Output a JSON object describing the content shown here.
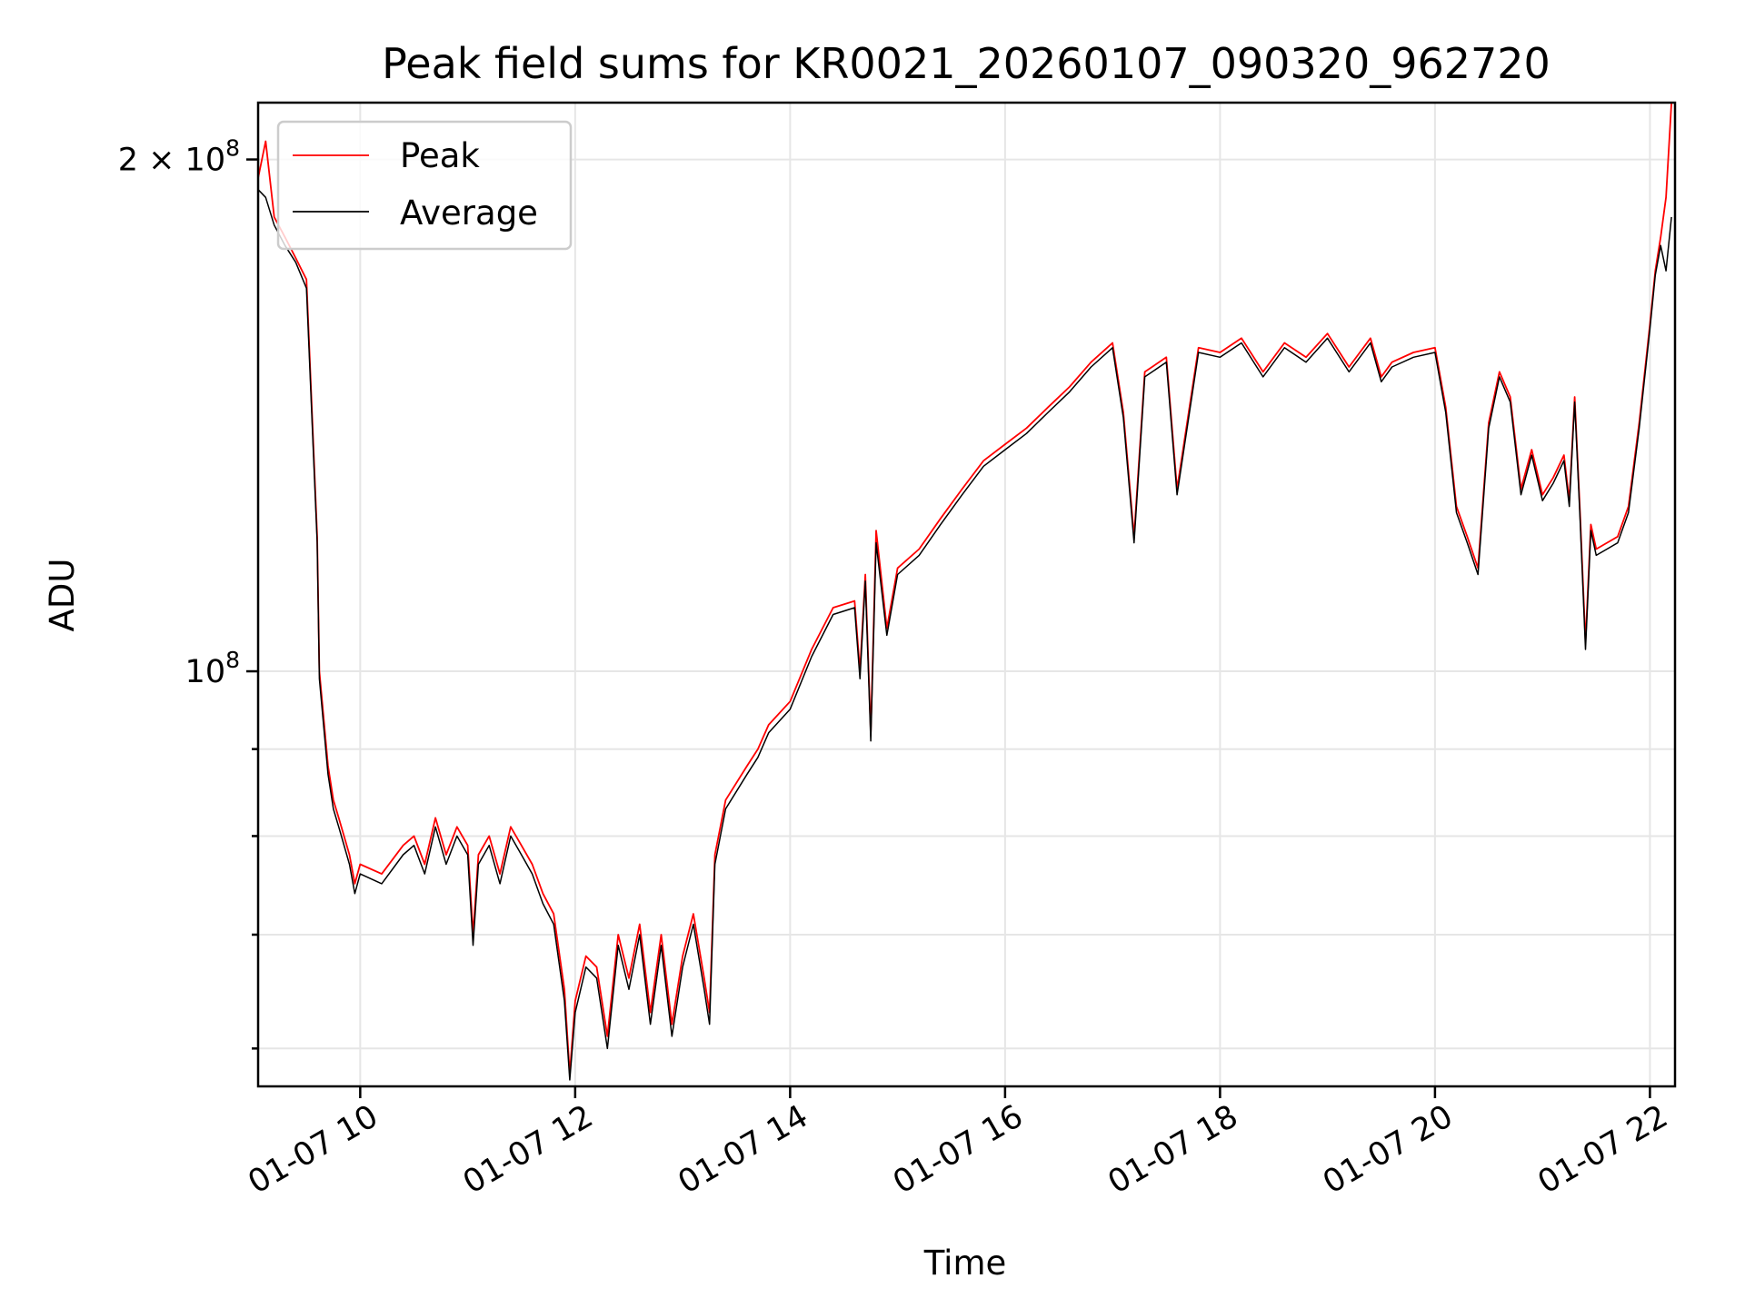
{
  "chart_data": {
    "type": "line",
    "title": "Peak field sums for KR0021_20260107_090320_962720",
    "xlabel": "Time",
    "ylabel": "ADU",
    "x_scale": "time",
    "y_scale": "log",
    "grid": true,
    "legend_position": "top-left",
    "xlim": [
      "01-07 09:03",
      "01-07 22:14"
    ],
    "ylim": [
      57000000,
      216000000
    ],
    "x_ticks": [
      "01-07 10",
      "01-07 12",
      "01-07 14",
      "01-07 16",
      "01-07 18",
      "01-07 20",
      "01-07 22"
    ],
    "x_tick_hours": [
      10,
      12,
      14,
      16,
      18,
      20,
      22
    ],
    "y_ticks": [
      {
        "value": 200000000,
        "label_base": "2 × 10",
        "label_exp": "8"
      },
      {
        "value": 100000000,
        "label_base": "10",
        "label_exp": "8"
      }
    ],
    "y_minor_ticks": [
      60000000,
      70000000,
      80000000,
      90000000
    ],
    "x_hours": [
      9.05,
      9.12,
      9.2,
      9.3,
      9.4,
      9.5,
      9.6,
      9.62,
      9.7,
      9.75,
      9.8,
      9.9,
      9.95,
      10.0,
      10.2,
      10.4,
      10.5,
      10.6,
      10.7,
      10.8,
      10.9,
      11.0,
      11.05,
      11.1,
      11.2,
      11.3,
      11.4,
      11.5,
      11.6,
      11.7,
      11.8,
      11.9,
      11.95,
      12.0,
      12.1,
      12.2,
      12.3,
      12.4,
      12.5,
      12.6,
      12.7,
      12.8,
      12.9,
      13.0,
      13.1,
      13.2,
      13.25,
      13.3,
      13.4,
      13.6,
      13.7,
      13.8,
      14.0,
      14.2,
      14.4,
      14.6,
      14.65,
      14.7,
      14.75,
      14.8,
      14.9,
      15.0,
      15.2,
      15.4,
      15.6,
      15.8,
      16.0,
      16.2,
      16.4,
      16.6,
      16.8,
      17.0,
      17.1,
      17.2,
      17.3,
      17.5,
      17.6,
      17.8,
      18.0,
      18.2,
      18.4,
      18.6,
      18.8,
      19.0,
      19.2,
      19.4,
      19.5,
      19.6,
      19.8,
      20.0,
      20.1,
      20.2,
      20.3,
      20.4,
      20.5,
      20.6,
      20.7,
      20.8,
      20.9,
      21.0,
      21.1,
      21.2,
      21.25,
      21.3,
      21.35,
      21.4,
      21.45,
      21.5,
      21.6,
      21.7,
      21.8,
      21.9,
      22.0,
      22.05,
      22.1,
      22.15,
      22.2
    ],
    "series": [
      {
        "name": "Peak",
        "color": "#ff0000",
        "values": [
          195000000,
          205000000,
          185000000,
          180000000,
          175000000,
          170000000,
          120000000,
          100000000,
          88000000,
          84000000,
          82000000,
          78000000,
          75000000,
          77000000,
          76000000,
          79000000,
          80000000,
          77000000,
          82000000,
          78000000,
          81000000,
          79000000,
          70000000,
          78000000,
          80000000,
          76000000,
          81000000,
          79000000,
          77000000,
          74000000,
          72000000,
          65000000,
          58000000,
          64000000,
          68000000,
          67000000,
          61000000,
          70000000,
          66000000,
          71000000,
          63000000,
          70000000,
          62000000,
          68000000,
          72000000,
          66000000,
          63000000,
          78000000,
          84000000,
          88000000,
          90000000,
          93000000,
          96000000,
          103000000,
          109000000,
          110000000,
          100000000,
          114000000,
          92000000,
          121000000,
          106000000,
          115000000,
          118000000,
          123000000,
          128000000,
          133000000,
          136000000,
          139000000,
          143000000,
          147000000,
          152000000,
          156000000,
          142000000,
          120000000,
          150000000,
          153000000,
          128000000,
          155000000,
          154000000,
          157000000,
          150000000,
          156000000,
          153000000,
          158000000,
          151000000,
          157000000,
          149000000,
          152000000,
          154000000,
          155000000,
          143000000,
          125000000,
          120000000,
          115000000,
          140000000,
          150000000,
          145000000,
          128000000,
          135000000,
          127000000,
          130000000,
          134000000,
          126000000,
          145000000,
          124000000,
          104000000,
          122000000,
          118000000,
          119000000,
          120000000,
          125000000,
          140000000,
          160000000,
          172000000,
          180000000,
          190000000,
          216000000
        ]
      },
      {
        "name": "Average",
        "color": "#000000",
        "values": [
          192000000,
          190000000,
          183000000,
          178000000,
          174000000,
          168000000,
          119000000,
          99000000,
          87000000,
          83000000,
          81000000,
          77000000,
          74000000,
          76000000,
          75000000,
          78000000,
          79000000,
          76000000,
          81000000,
          77000000,
          80000000,
          78000000,
          69000000,
          77000000,
          79000000,
          75000000,
          80000000,
          78000000,
          76000000,
          73000000,
          71000000,
          64000000,
          57500000,
          63000000,
          67000000,
          66000000,
          60000000,
          69000000,
          65000000,
          70000000,
          62000000,
          69000000,
          61000000,
          67000000,
          71000000,
          65000000,
          62000000,
          77000000,
          83000000,
          87000000,
          89000000,
          92000000,
          95000000,
          102000000,
          108000000,
          109000000,
          99000000,
          113000000,
          91000000,
          119000000,
          105000000,
          114000000,
          117000000,
          122000000,
          127000000,
          132000000,
          135000000,
          138000000,
          142000000,
          146000000,
          151000000,
          155000000,
          141000000,
          119000000,
          149000000,
          152000000,
          127000000,
          154000000,
          153000000,
          156000000,
          149000000,
          155000000,
          152000000,
          157000000,
          150000000,
          156000000,
          148000000,
          151000000,
          153000000,
          154000000,
          142000000,
          124000000,
          119000000,
          114000000,
          139000000,
          149000000,
          144000000,
          127000000,
          134000000,
          126000000,
          129000000,
          133000000,
          125000000,
          144000000,
          123000000,
          103000000,
          121000000,
          117000000,
          118000000,
          119000000,
          124000000,
          139000000,
          159000000,
          171000000,
          178000000,
          172000000,
          185000000
        ]
      }
    ]
  }
}
